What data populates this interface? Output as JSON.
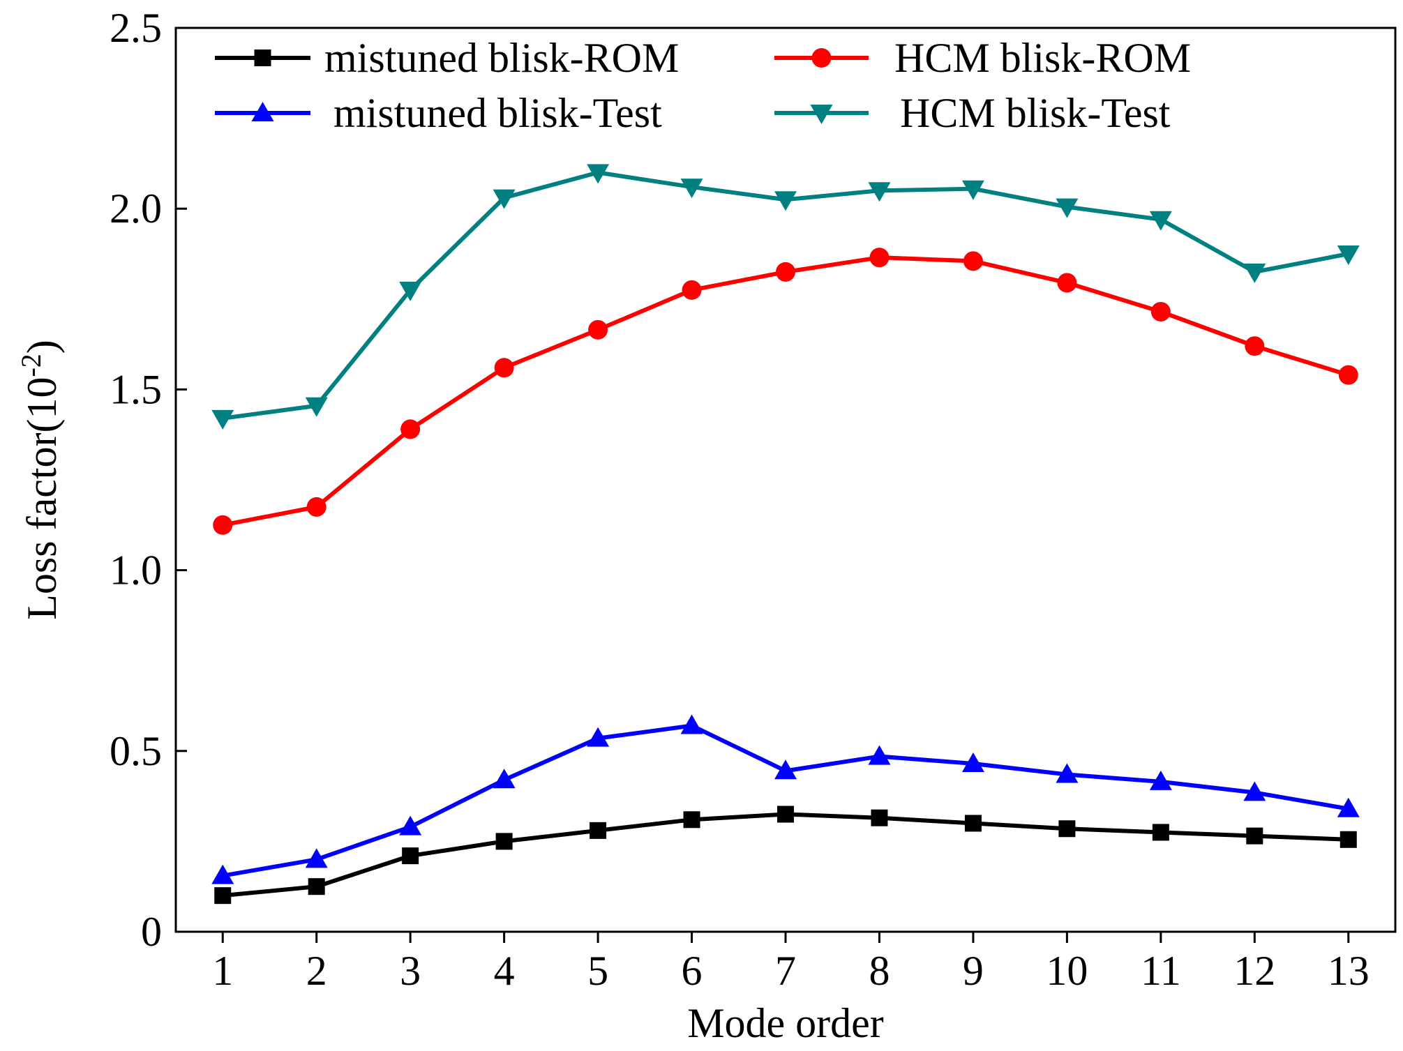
{
  "chart_data": {
    "type": "line",
    "xlabel": "Mode order",
    "ylabel_main": "Loss factor(10",
    "ylabel_sup": "-2",
    "ylabel_close": ")",
    "xlim": [
      0.5,
      13.5
    ],
    "ylim": [
      0,
      2.5
    ],
    "x_ticks": [
      1,
      2,
      3,
      4,
      5,
      6,
      7,
      8,
      9,
      10,
      11,
      12,
      13
    ],
    "x_tick_labels": [
      "1",
      "2",
      "3",
      "4",
      "5",
      "6",
      "7",
      "8",
      "9",
      "10",
      "11",
      "12",
      "13"
    ],
    "y_ticks": [
      0,
      0.5,
      1.0,
      1.5,
      2.0,
      2.5
    ],
    "y_tick_labels": [
      "0",
      "0.5",
      "1.0",
      "1.5",
      "2.0",
      "2.5"
    ],
    "grid": false,
    "legend_position": "top",
    "x": [
      1,
      2,
      3,
      4,
      5,
      6,
      7,
      8,
      9,
      10,
      11,
      12,
      13
    ],
    "series": [
      {
        "name": "mistuned blisk-ROM",
        "color": "#000000",
        "marker": "square",
        "values": [
          0.1,
          0.125,
          0.21,
          0.25,
          0.28,
          0.31,
          0.325,
          0.315,
          0.3,
          0.285,
          0.275,
          0.265,
          0.255
        ]
      },
      {
        "name": "HCM blisk-ROM",
        "color": "#ff0000",
        "marker": "circle",
        "values": [
          1.125,
          1.175,
          1.39,
          1.56,
          1.665,
          1.775,
          1.825,
          1.865,
          1.855,
          1.795,
          1.715,
          1.62,
          1.54
        ]
      },
      {
        "name": "mistuned blisk-Test",
        "color": "#0000ff",
        "marker": "triangle-up",
        "values": [
          0.155,
          0.2,
          0.29,
          0.42,
          0.535,
          0.57,
          0.445,
          0.485,
          0.465,
          0.435,
          0.415,
          0.385,
          0.34
        ]
      },
      {
        "name": "HCM blisk-Test",
        "color": "#008080",
        "marker": "triangle-down",
        "values": [
          1.42,
          1.455,
          1.775,
          2.03,
          2.1,
          2.06,
          2.025,
          2.05,
          2.055,
          2.005,
          1.97,
          1.825,
          1.875
        ]
      }
    ]
  }
}
